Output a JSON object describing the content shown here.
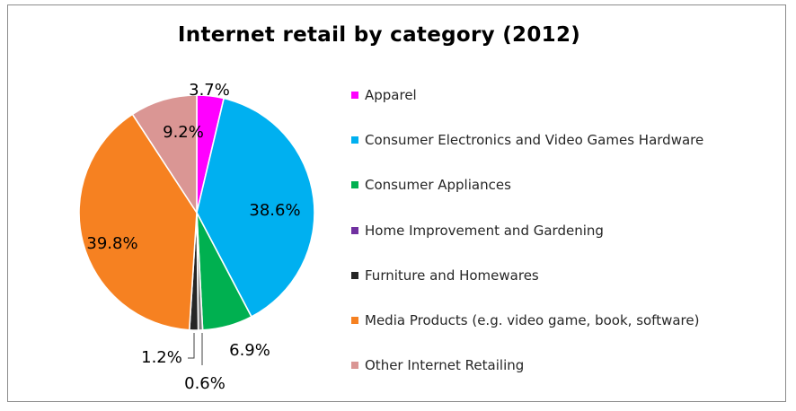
{
  "chart_data": {
    "type": "pie",
    "title": "Internet retail by category (2012)",
    "legend_position": "right",
    "slices": [
      {
        "name": "Apparel",
        "value": 3.7,
        "label": "3.7%",
        "color": "#ff00ff"
      },
      {
        "name": "Consumer Electronics and Video Games Hardware",
        "value": 38.6,
        "label": "38.6%",
        "color": "#00b0f0"
      },
      {
        "name": "Consumer Appliances",
        "value": 6.9,
        "label": "6.9%",
        "color": "#00b050"
      },
      {
        "name": "Home Improvement and Gardening",
        "value": 0.0,
        "label": "",
        "color": "#7030a0"
      },
      {
        "name": "Furniture and Homewares",
        "value": 1.2,
        "label": "1.2%",
        "color": "#262626"
      },
      {
        "name": "Media Products (e.g. video game, book, software)",
        "value": 39.8,
        "label": "39.8%",
        "color": "#f68121"
      },
      {
        "name": "Other Internet Retailing",
        "value": 9.2,
        "label": "9.2%",
        "color": "#da9694"
      }
    ],
    "unlisted_slice": {
      "value": 0.6,
      "label": "0.6%",
      "color": "#7f7f7f"
    }
  }
}
